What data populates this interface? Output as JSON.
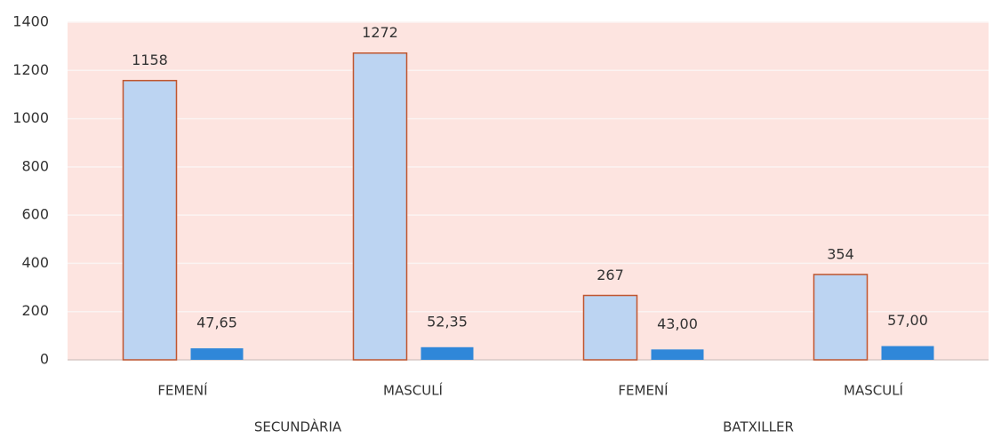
{
  "chart_data": {
    "type": "bar",
    "categories": [
      "FEMENÍ",
      "MASCULÍ",
      "FEMENÍ",
      "MASCULÍ"
    ],
    "groups": [
      "SECUNDÀRIA",
      "BATXILLER"
    ],
    "series": [
      {
        "color": "#bcd4f2",
        "values": [
          1158,
          1272,
          267,
          354
        ]
      },
      {
        "color": "#2f87d9",
        "values": [
          47.65,
          52.35,
          43,
          57
        ],
        "value_labels": [
          "47,65",
          "52,35",
          "43,00",
          "57,00"
        ]
      }
    ],
    "ylim": [
      0,
      1400
    ],
    "yticks": [
      0,
      200,
      400,
      600,
      800,
      1000,
      1200,
      1400
    ],
    "grid": true
  }
}
